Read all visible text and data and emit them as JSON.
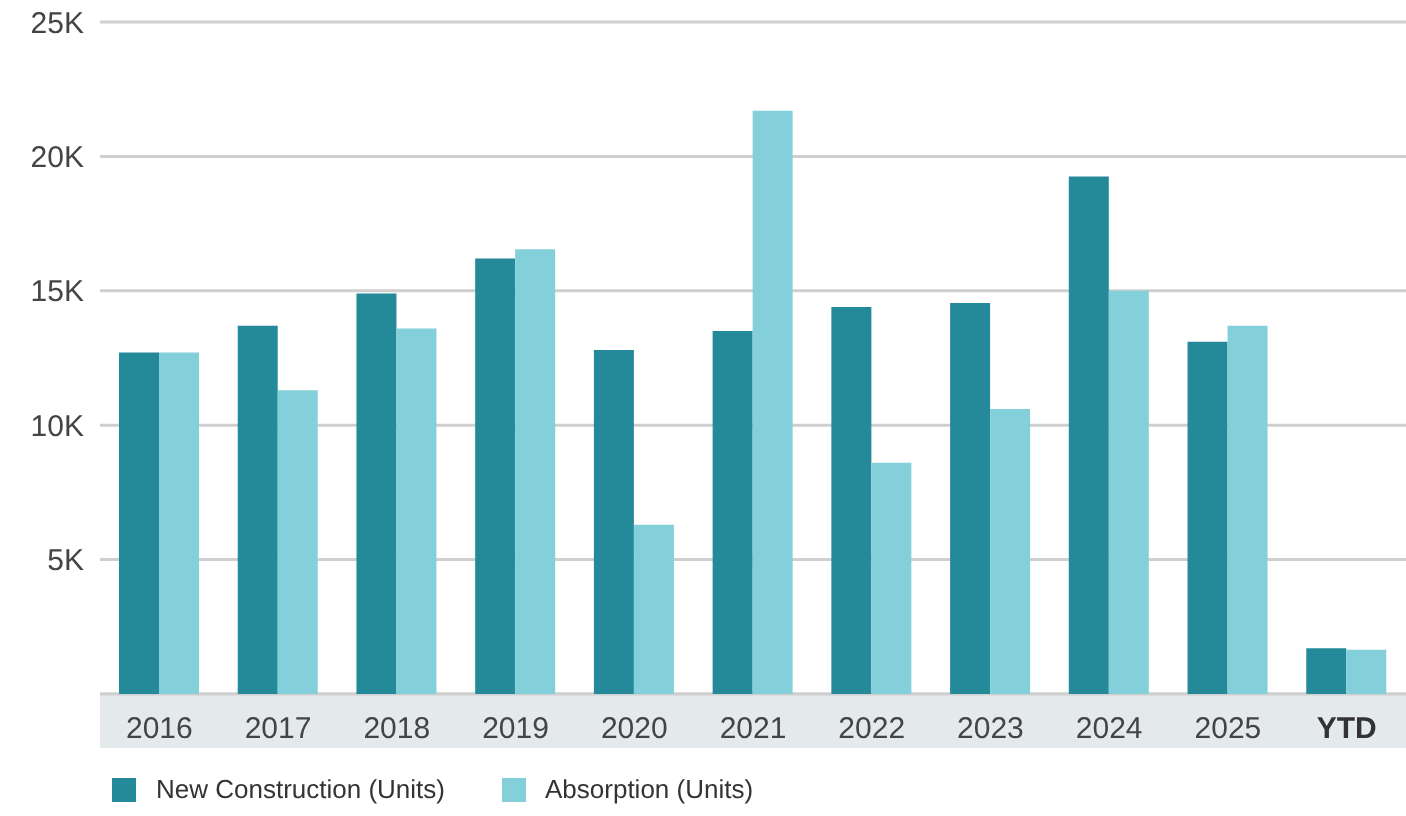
{
  "chart_data": {
    "type": "bar",
    "categories": [
      "2016",
      "2017",
      "2018",
      "2019",
      "2020",
      "2021",
      "2022",
      "2023",
      "2024",
      "2025",
      "YTD"
    ],
    "series": [
      {
        "name": "New Construction (Units)",
        "color": "#248999",
        "values": [
          12700,
          13700,
          14900,
          16200,
          12800,
          13500,
          14400,
          14550,
          19250,
          13100,
          1700
        ]
      },
      {
        "name": "Absorption (Units)",
        "color": "#84d0da",
        "values": [
          12700,
          11300,
          13600,
          16550,
          6300,
          21700,
          8600,
          10600,
          15000,
          13700,
          1650
        ]
      }
    ],
    "ylim": [
      0,
      25000
    ],
    "yticks": [
      {
        "value": 5000,
        "label": "5K"
      },
      {
        "value": 10000,
        "label": "10K"
      },
      {
        "value": 15000,
        "label": "15K"
      },
      {
        "value": 20000,
        "label": "20K"
      },
      {
        "value": 25000,
        "label": "25K"
      }
    ],
    "grid": "y",
    "legend": "bottom left"
  }
}
